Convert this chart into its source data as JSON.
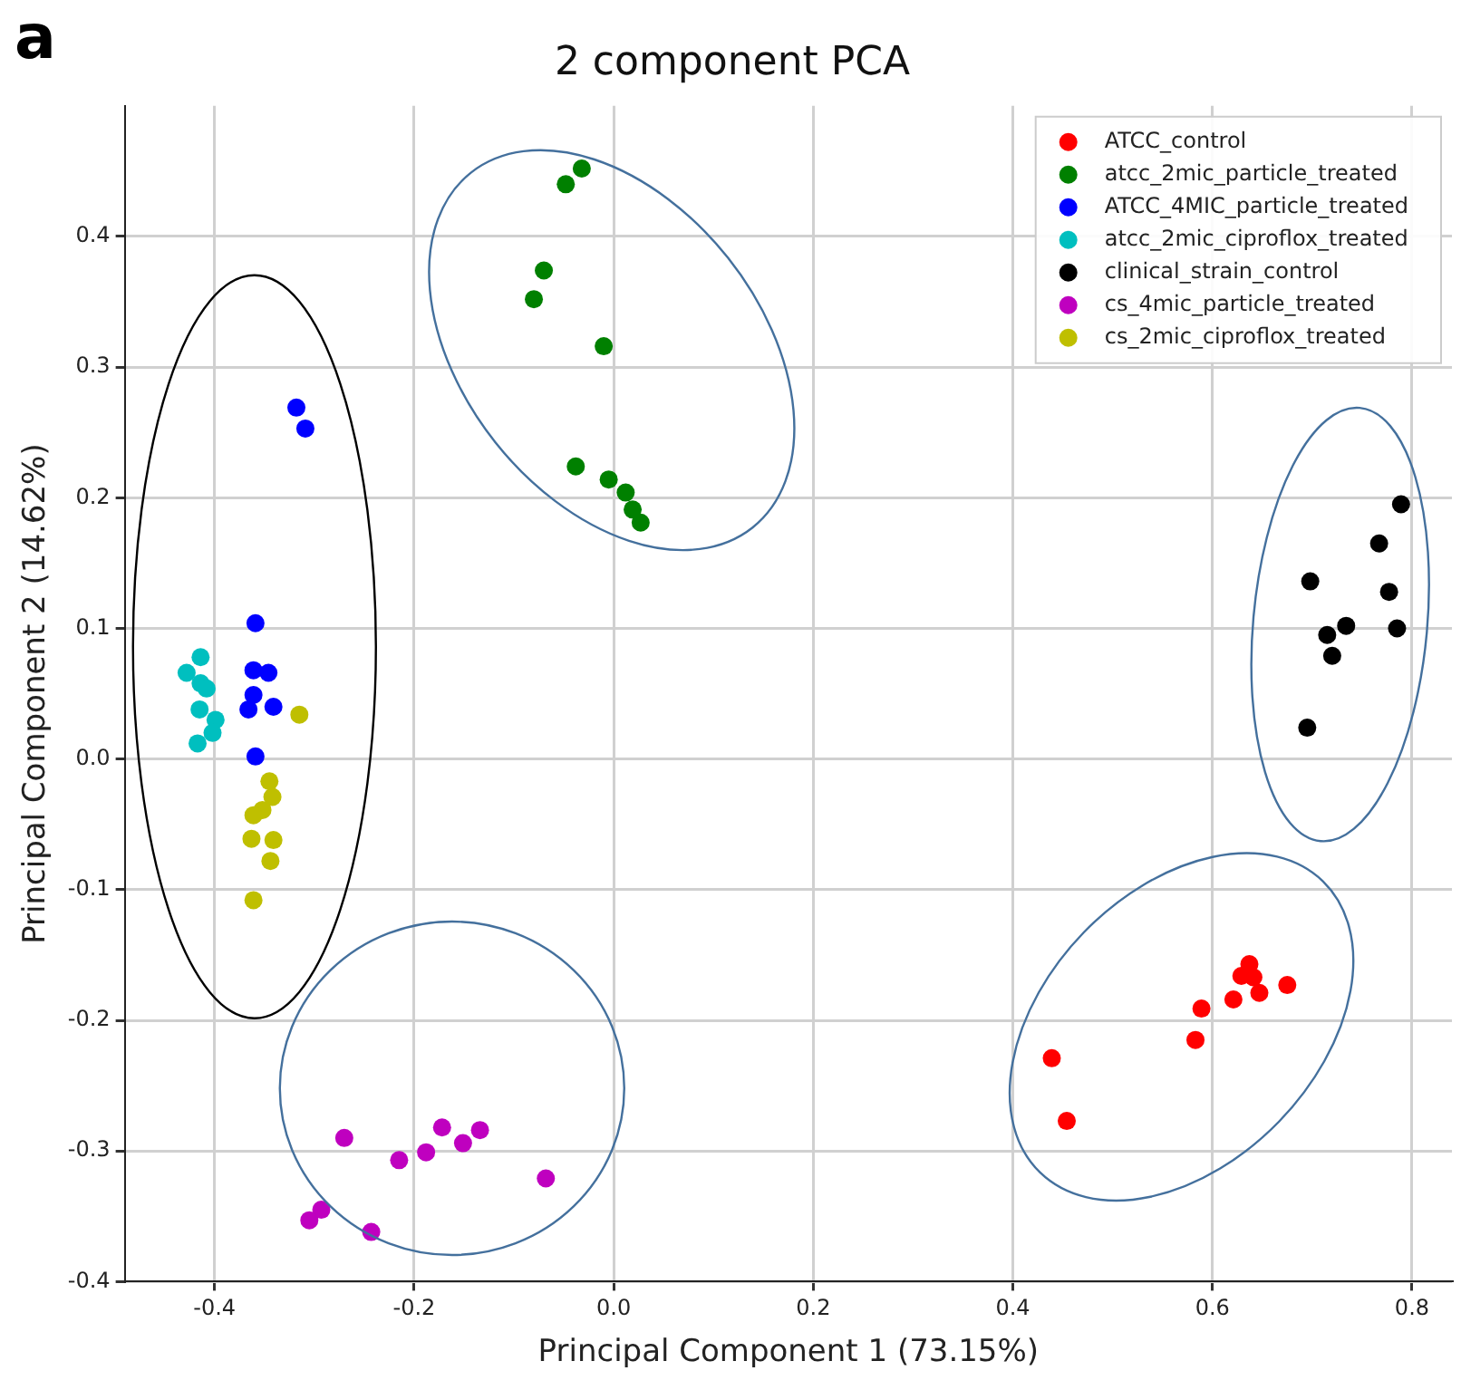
{
  "chart_data": {
    "type": "scatter",
    "title": "2 component PCA",
    "xlabel": "Principal Component 1 (73.15%)",
    "ylabel": "Principal Component 2 (14.62%)",
    "annotations": [
      "a"
    ],
    "xlim": [
      -0.49,
      0.84
    ],
    "ylim": [
      -0.4,
      0.5
    ],
    "xticks": [
      -0.4,
      -0.2,
      {
        "value": 0,
        "label": "0.0"
      },
      0.2,
      0.4,
      0.6,
      0.8
    ],
    "yticks": [
      -0.4,
      -0.3,
      -0.2,
      -0.1,
      {
        "value": 0,
        "label": "0.0"
      },
      0.1,
      0.2,
      0.3,
      0.4
    ],
    "grid": true,
    "legend": "top right",
    "marker": "circle",
    "series": [
      {
        "name": "ATCC_control",
        "color": "#ff0000",
        "x": [
          0.637,
          0.629,
          0.641,
          0.675,
          0.647,
          0.621,
          0.589,
          0.583,
          0.439,
          0.454
        ],
        "values": [
          -0.157,
          -0.166,
          -0.167,
          -0.173,
          -0.179,
          -0.184,
          -0.191,
          -0.215,
          -0.229,
          -0.277
        ]
      },
      {
        "name": "atcc_2mic_particle_treated",
        "color": "#008000",
        "x": [
          -0.032,
          -0.048,
          -0.07,
          -0.08,
          -0.01,
          -0.038,
          -0.005,
          0.012,
          0.019,
          0.027
        ],
        "values": [
          0.452,
          0.44,
          0.374,
          0.352,
          0.316,
          0.224,
          0.214,
          0.204,
          0.191,
          0.181
        ]
      },
      {
        "name": "ATCC_4MIC_particle_treated",
        "color": "#0000ff",
        "x": [
          -0.318,
          -0.309,
          -0.359,
          -0.361,
          -0.346,
          -0.361,
          -0.366,
          -0.341,
          -0.359
        ],
        "values": [
          0.269,
          0.253,
          0.104,
          0.068,
          0.066,
          0.049,
          0.038,
          0.04,
          0.002
        ]
      },
      {
        "name": "atcc_2mic_ciproflox_treated",
        "color": "#00bfbf",
        "x": [
          -0.414,
          -0.428,
          -0.414,
          -0.408,
          -0.415,
          -0.399,
          -0.402,
          -0.417
        ],
        "values": [
          0.078,
          0.066,
          0.058,
          0.054,
          0.038,
          0.03,
          0.02,
          0.012
        ]
      },
      {
        "name": "clinical_strain_control",
        "color": "#000000",
        "x": [
          0.789,
          0.767,
          0.698,
          0.777,
          0.734,
          0.785,
          0.715,
          0.72,
          0.695
        ],
        "values": [
          0.195,
          0.165,
          0.136,
          0.128,
          0.102,
          0.1,
          0.095,
          0.079,
          0.024
        ]
      },
      {
        "name": "cs_4mic_particle_treated",
        "color": "#bf00bf",
        "x": [
          -0.27,
          -0.215,
          -0.188,
          -0.172,
          -0.151,
          -0.134,
          -0.068,
          -0.293,
          -0.305,
          -0.243
        ],
        "values": [
          -0.29,
          -0.307,
          -0.301,
          -0.282,
          -0.294,
          -0.284,
          -0.321,
          -0.345,
          -0.353,
          -0.362
        ]
      },
      {
        "name": "cs_2mic_ciproflox_treated",
        "color": "#bfbf00",
        "x": [
          -0.315,
          -0.345,
          -0.342,
          -0.352,
          -0.361,
          -0.363,
          -0.341,
          -0.344,
          -0.361
        ],
        "values": [
          0.034,
          -0.017,
          -0.029,
          -0.039,
          -0.043,
          -0.061,
          -0.062,
          -0.078,
          -0.108
        ]
      }
    ]
  }
}
